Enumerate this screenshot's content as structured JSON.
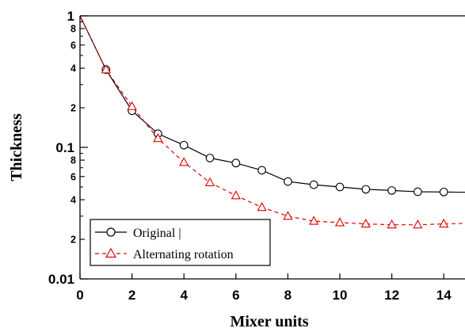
{
  "chart_data": {
    "type": "line",
    "xlabel": "Mixer units",
    "ylabel": "Thickness",
    "xlim": [
      0,
      15
    ],
    "ylim": [
      0.01,
      1
    ],
    "yscale": "log",
    "x_ticks": [
      "0",
      "2",
      "4",
      "6",
      "8",
      "10",
      "12",
      "14"
    ],
    "y_major_ticks": [
      {
        "value": 1,
        "label": "1"
      },
      {
        "value": 0.1,
        "label": "0.1"
      },
      {
        "value": 0.01,
        "label": "0.01"
      }
    ],
    "y_minor_ticks": [
      {
        "value": 0.8,
        "label": "8"
      },
      {
        "value": 0.6,
        "label": "6"
      },
      {
        "value": 0.4,
        "label": "4"
      },
      {
        "value": 0.2,
        "label": "2"
      },
      {
        "value": 0.08,
        "label": "8"
      },
      {
        "value": 0.06,
        "label": "6"
      },
      {
        "value": 0.04,
        "label": "4"
      },
      {
        "value": 0.02,
        "label": "2"
      }
    ],
    "legend_position": "bottom-left",
    "x": [
      0,
      1,
      2,
      3,
      4,
      5,
      6,
      7,
      8,
      9,
      10,
      11,
      12,
      13,
      14,
      15
    ],
    "series": [
      {
        "name": "Original |",
        "color": "#000000",
        "marker": "circle",
        "line_style": "solid",
        "values": [
          1.0,
          0.39,
          0.19,
          0.127,
          0.104,
          0.083,
          0.076,
          0.067,
          0.055,
          0.052,
          0.05,
          0.048,
          0.047,
          0.046,
          0.0458,
          0.0455
        ]
      },
      {
        "name": "Alternating rotation",
        "color": "#dd0000",
        "marker": "triangle",
        "line_style": "dashed",
        "values": [
          1.0,
          0.39,
          0.205,
          0.117,
          0.077,
          0.054,
          0.043,
          0.035,
          0.03,
          0.0275,
          0.0268,
          0.0262,
          0.0258,
          0.0258,
          0.0262,
          0.0265
        ]
      }
    ]
  }
}
